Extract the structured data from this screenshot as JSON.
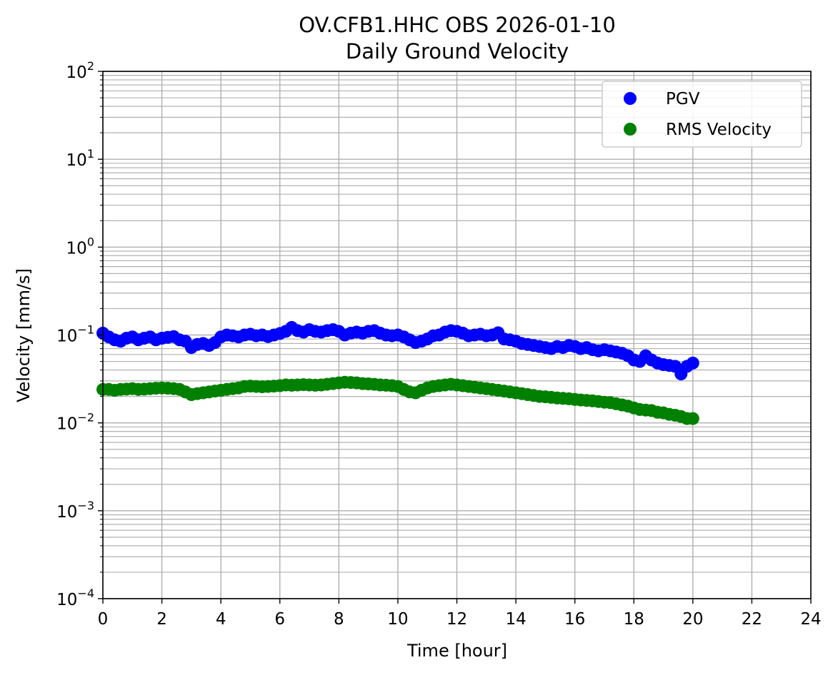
{
  "chart_data": {
    "type": "scatter",
    "title": "OV.CFB1.HHC OBS 2026-01-10",
    "subtitle": "Daily Ground Velocity",
    "xlabel": "Time [hour]",
    "ylabel": "Velocity [mm/s]",
    "xlim": [
      0,
      24
    ],
    "ylim": [
      0.0001,
      100
    ],
    "yscale": "log",
    "grid": true,
    "legend_position": "upper-right",
    "x_ticks": [
      "0",
      "2",
      "4",
      "6",
      "8",
      "10",
      "12",
      "14",
      "16",
      "18",
      "20",
      "22",
      "24"
    ],
    "y_ticks": [
      {
        "value": 0.0001,
        "base": "10",
        "exp": "−4"
      },
      {
        "value": 0.001,
        "base": "10",
        "exp": "−3"
      },
      {
        "value": 0.01,
        "base": "10",
        "exp": "−2"
      },
      {
        "value": 0.1,
        "base": "10",
        "exp": "−1"
      },
      {
        "value": 1,
        "base": "10",
        "exp": "0"
      },
      {
        "value": 10,
        "base": "10",
        "exp": "1"
      },
      {
        "value": 100,
        "base": "10",
        "exp": "2"
      }
    ],
    "series": [
      {
        "name": "PGV",
        "color": "#0000ff",
        "x": [
          0.0,
          0.2,
          0.4,
          0.6,
          0.8,
          1.0,
          1.2,
          1.4,
          1.6,
          1.8,
          2.0,
          2.2,
          2.4,
          2.6,
          2.8,
          3.0,
          3.2,
          3.4,
          3.6,
          3.8,
          4.0,
          4.2,
          4.4,
          4.6,
          4.8,
          5.0,
          5.2,
          5.4,
          5.6,
          5.8,
          6.0,
          6.2,
          6.4,
          6.6,
          6.8,
          7.0,
          7.2,
          7.4,
          7.6,
          7.8,
          8.0,
          8.2,
          8.4,
          8.6,
          8.8,
          9.0,
          9.2,
          9.4,
          9.6,
          9.8,
          10.0,
          10.2,
          10.4,
          10.6,
          10.8,
          11.0,
          11.2,
          11.4,
          11.6,
          11.8,
          12.0,
          12.2,
          12.4,
          12.6,
          12.8,
          13.0,
          13.2,
          13.4,
          13.6,
          13.8,
          14.0,
          14.2,
          14.4,
          14.6,
          14.8,
          15.0,
          15.2,
          15.4,
          15.6,
          15.8,
          16.0,
          16.2,
          16.4,
          16.6,
          16.8,
          17.0,
          17.2,
          17.4,
          17.6,
          17.8,
          18.0,
          18.2,
          18.4,
          18.6,
          18.8,
          19.0,
          19.2,
          19.4,
          19.6,
          19.8,
          20.0
        ],
        "y": [
          0.105,
          0.095,
          0.088,
          0.085,
          0.092,
          0.095,
          0.088,
          0.092,
          0.095,
          0.088,
          0.092,
          0.094,
          0.096,
          0.088,
          0.085,
          0.072,
          0.078,
          0.08,
          0.076,
          0.082,
          0.095,
          0.1,
          0.098,
          0.095,
          0.1,
          0.102,
          0.098,
          0.1,
          0.096,
          0.1,
          0.104,
          0.11,
          0.122,
          0.112,
          0.108,
          0.115,
          0.11,
          0.108,
          0.112,
          0.115,
          0.11,
          0.1,
          0.105,
          0.108,
          0.105,
          0.11,
          0.112,
          0.105,
          0.1,
          0.098,
          0.1,
          0.095,
          0.088,
          0.082,
          0.085,
          0.09,
          0.098,
          0.1,
          0.108,
          0.112,
          0.11,
          0.105,
          0.098,
          0.1,
          0.102,
          0.098,
          0.1,
          0.106,
          0.09,
          0.088,
          0.085,
          0.08,
          0.078,
          0.076,
          0.074,
          0.072,
          0.07,
          0.074,
          0.072,
          0.076,
          0.074,
          0.07,
          0.072,
          0.068,
          0.066,
          0.068,
          0.066,
          0.064,
          0.062,
          0.058,
          0.052,
          0.05,
          0.058,
          0.052,
          0.048,
          0.046,
          0.045,
          0.044,
          0.036,
          0.044,
          0.048
        ]
      },
      {
        "name": "RMS Velocity",
        "color": "#008000",
        "x": [
          0.0,
          0.2,
          0.4,
          0.6,
          0.8,
          1.0,
          1.2,
          1.4,
          1.6,
          1.8,
          2.0,
          2.2,
          2.4,
          2.6,
          2.8,
          3.0,
          3.2,
          3.4,
          3.6,
          3.8,
          4.0,
          4.2,
          4.4,
          4.6,
          4.8,
          5.0,
          5.2,
          5.4,
          5.6,
          5.8,
          6.0,
          6.2,
          6.4,
          6.6,
          6.8,
          7.0,
          7.2,
          7.4,
          7.6,
          7.8,
          8.0,
          8.2,
          8.4,
          8.6,
          8.8,
          9.0,
          9.2,
          9.4,
          9.6,
          9.8,
          10.0,
          10.2,
          10.4,
          10.6,
          10.8,
          11.0,
          11.2,
          11.4,
          11.6,
          11.8,
          12.0,
          12.2,
          12.4,
          12.6,
          12.8,
          13.0,
          13.2,
          13.4,
          13.6,
          13.8,
          14.0,
          14.2,
          14.4,
          14.6,
          14.8,
          15.0,
          15.2,
          15.4,
          15.6,
          15.8,
          16.0,
          16.2,
          16.4,
          16.6,
          16.8,
          17.0,
          17.2,
          17.4,
          17.6,
          17.8,
          18.0,
          18.2,
          18.4,
          18.6,
          18.8,
          19.0,
          19.2,
          19.4,
          19.6,
          19.8,
          20.0
        ],
        "y": [
          0.024,
          0.024,
          0.0235,
          0.024,
          0.0242,
          0.0245,
          0.024,
          0.0242,
          0.0245,
          0.0248,
          0.025,
          0.0248,
          0.0245,
          0.024,
          0.0225,
          0.021,
          0.0215,
          0.022,
          0.0225,
          0.023,
          0.0235,
          0.024,
          0.0245,
          0.025,
          0.026,
          0.0262,
          0.026,
          0.0258,
          0.026,
          0.0262,
          0.0265,
          0.027,
          0.0268,
          0.027,
          0.0272,
          0.027,
          0.0268,
          0.027,
          0.0275,
          0.028,
          0.0285,
          0.029,
          0.0288,
          0.0285,
          0.028,
          0.0278,
          0.0275,
          0.027,
          0.0268,
          0.0265,
          0.026,
          0.024,
          0.0225,
          0.022,
          0.0235,
          0.025,
          0.026,
          0.0265,
          0.027,
          0.0275,
          0.027,
          0.0265,
          0.026,
          0.0255,
          0.025,
          0.0245,
          0.024,
          0.0235,
          0.023,
          0.0225,
          0.022,
          0.0215,
          0.021,
          0.0205,
          0.02,
          0.0198,
          0.0195,
          0.0192,
          0.019,
          0.0188,
          0.0185,
          0.0182,
          0.018,
          0.0178,
          0.0175,
          0.0172,
          0.017,
          0.0165,
          0.016,
          0.0155,
          0.0148,
          0.0142,
          0.014,
          0.0138,
          0.0132,
          0.013,
          0.0125,
          0.0122,
          0.0118,
          0.0112,
          0.0112
        ]
      }
    ]
  }
}
